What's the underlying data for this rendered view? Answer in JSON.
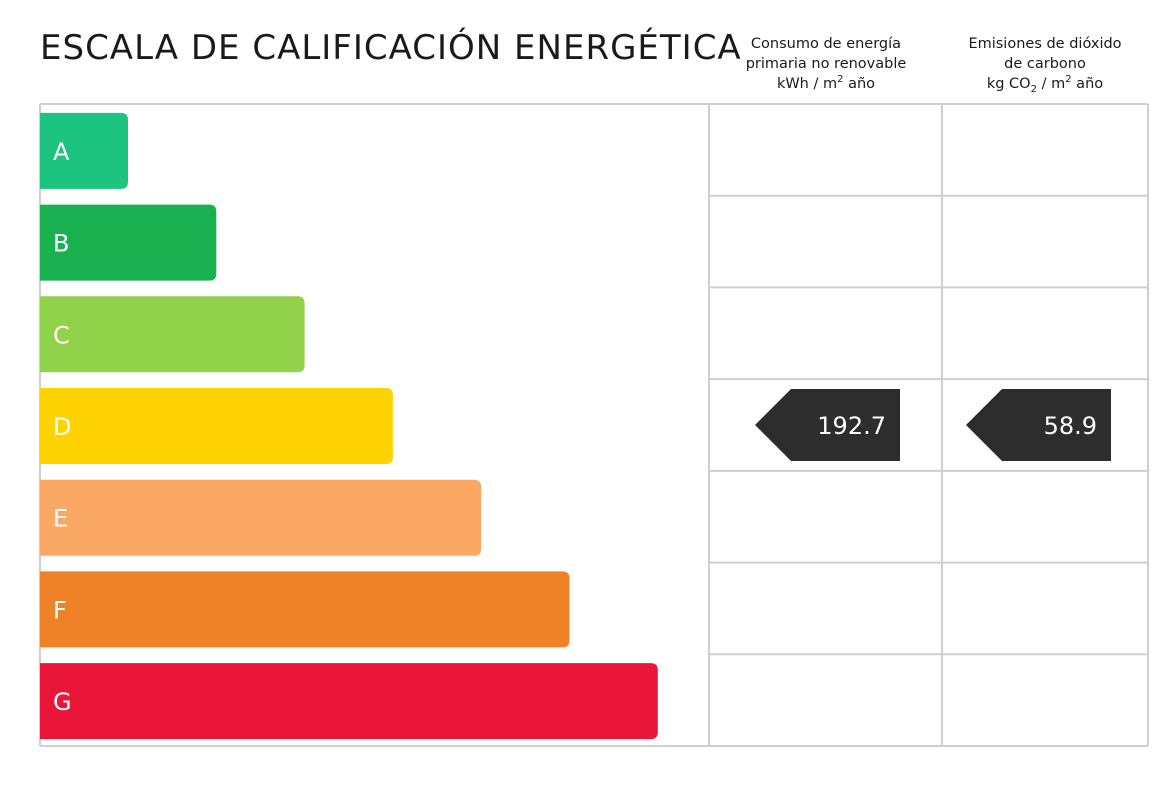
{
  "title": "ESCALA DE CALIFICACIÓN ENERGÉTICA",
  "columns": {
    "energy": {
      "line1": "Consumo de energía",
      "line2": "primaria no renovable",
      "unit_pre": "kWh / m",
      "unit_sup": "2",
      "unit_post": " año"
    },
    "co2": {
      "line1": "Emisiones de dióxido",
      "line2": "de carbono",
      "unit_pre": "kg CO",
      "unit_sub": "2",
      "unit_mid": " / m",
      "unit_sup": "2",
      "unit_post": " año"
    }
  },
  "chart_data": {
    "type": "bar",
    "categories": [
      "A",
      "B",
      "C",
      "D",
      "E",
      "F",
      "G"
    ],
    "colors": [
      "#1cc47f",
      "#19b050",
      "#92d14a",
      "#fed300",
      "#fca865",
      "#ef8126",
      "#ea1639"
    ],
    "rating": "D",
    "values": {
      "energy": 192.7,
      "co2": 58.9
    }
  }
}
